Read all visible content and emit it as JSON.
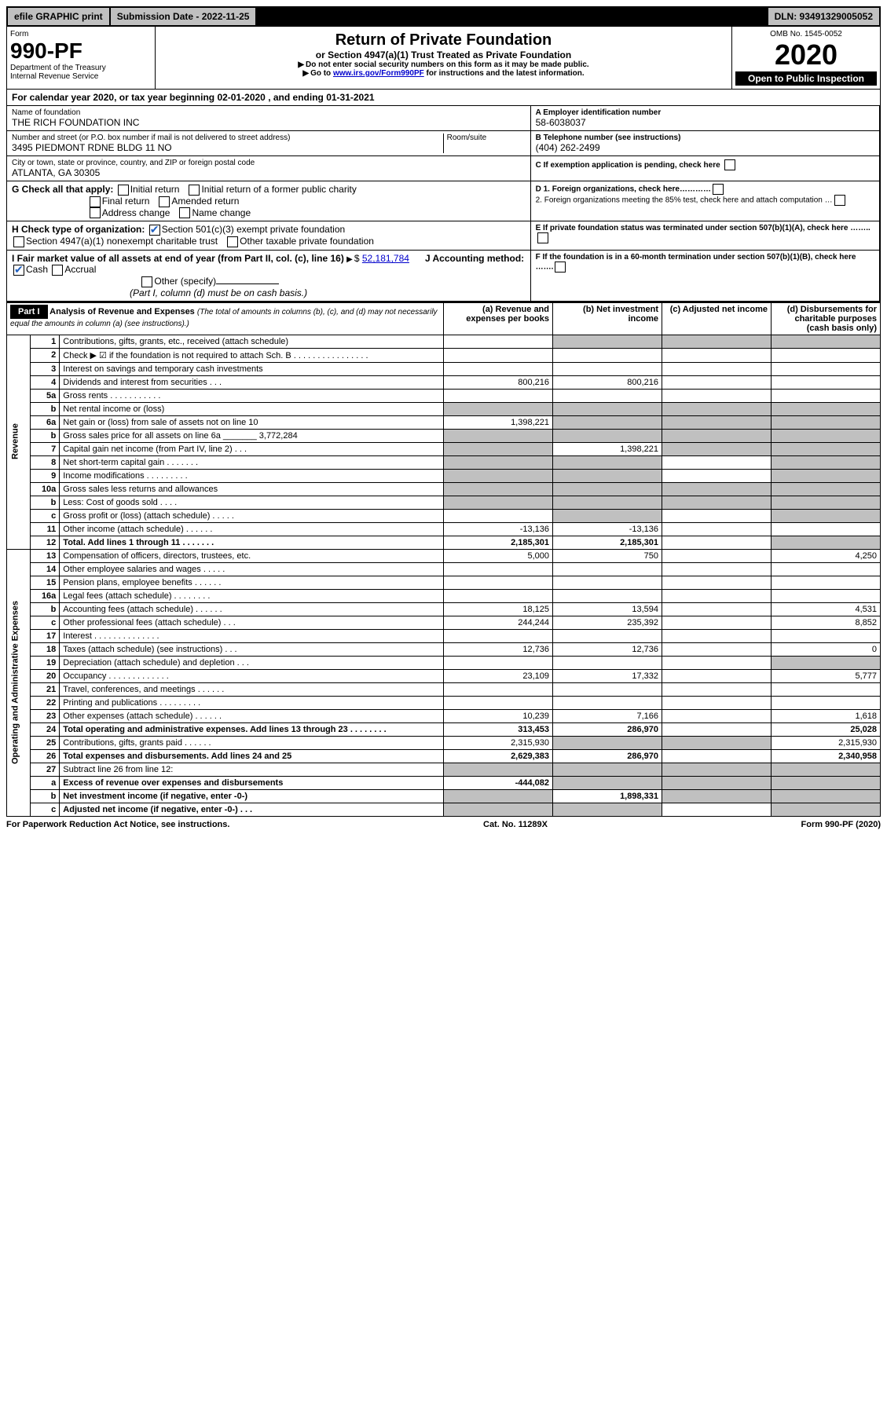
{
  "topbar": {
    "efile": "efile GRAPHIC print",
    "submission_label": "Submission Date - 2022-11-25",
    "dln_label": "DLN: 93491329005052"
  },
  "header": {
    "form_word": "Form",
    "form_number": "990-PF",
    "dept1": "Department of the Treasury",
    "dept2": "Internal Revenue Service",
    "omb": "OMB No. 1545-0052",
    "title": "Return of Private Foundation",
    "subtitle": "or Section 4947(a)(1) Trust Treated as Private Foundation",
    "note1": "Do not enter social security numbers on this form as it may be made public.",
    "note2_pre": "Go to ",
    "note2_link": "www.irs.gov/Form990PF",
    "note2_post": " for instructions and the latest information.",
    "year": "2020",
    "open": "Open to Public Inspection"
  },
  "calendar": {
    "pre": "For calendar year 2020, or tax year beginning ",
    "begin": "02-01-2020",
    "mid": " , and ending ",
    "end": "01-31-2021"
  },
  "info": {
    "name_label": "Name of foundation",
    "name": "THE RICH FOUNDATION INC",
    "addr_label": "Number and street (or P.O. box number if mail is not delivered to street address)",
    "addr": "3495 PIEDMONT RDNE BLDG 11 NO",
    "room_label": "Room/suite",
    "city_label": "City or town, state or province, country, and ZIP or foreign postal code",
    "city": "ATLANTA, GA  30305",
    "a_label": "A Employer identification number",
    "a_val": "58-6038037",
    "b_label": "B Telephone number (see instructions)",
    "b_val": "(404) 262-2499",
    "c_label": "C If exemption application is pending, check here",
    "g_label": "G Check all that apply:",
    "g_opts": [
      "Initial return",
      "Final return",
      "Address change",
      "Initial return of a former public charity",
      "Amended return",
      "Name change"
    ],
    "h_label": "H Check type of organization:",
    "h1": "Section 501(c)(3) exempt private foundation",
    "h2": "Section 4947(a)(1) nonexempt charitable trust",
    "h3": "Other taxable private foundation",
    "d1": "D 1. Foreign organizations, check here…………",
    "d2": "2. Foreign organizations meeting the 85% test, check here and attach computation …",
    "e_label": "E  If private foundation status was terminated under section 507(b)(1)(A), check here ……..",
    "i_label": "I Fair market value of all assets at end of year (from Part II, col. (c), line 16)",
    "i_val": "52,181,784",
    "j_label": "J Accounting method:",
    "j_cash": "Cash",
    "j_accrual": "Accrual",
    "j_other": "Other (specify)",
    "j_note": "(Part I, column (d) must be on cash basis.)",
    "f_label": "F  If the foundation is in a 60-month termination under section 507(b)(1)(B), check here ……."
  },
  "part1": {
    "label": "Part I",
    "title": "Analysis of Revenue and Expenses",
    "title_note": "(The total of amounts in columns (b), (c), and (d) may not necessarily equal the amounts in column (a) (see instructions).)",
    "col_a": "(a)      Revenue and expenses per books",
    "col_b": "(b)   Net investment income",
    "col_c": "(c)   Adjusted net income",
    "col_d": "(d)   Disbursements for charitable purposes (cash basis only)",
    "sidebar_rev": "Revenue",
    "sidebar_exp": "Operating and Administrative Expenses"
  },
  "rows": [
    {
      "n": "1",
      "label": "Contributions, gifts, grants, etc., received (attach schedule)",
      "a": "",
      "b": "",
      "c": "",
      "d": "",
      "grey_bcd": true
    },
    {
      "n": "2",
      "label": "Check ▶ ☑ if the foundation is not required to attach Sch. B   .  .  .  .  .  .  .  .  .  .  .  .  .  .  .  ."
    },
    {
      "n": "3",
      "label": "Interest on savings and temporary cash investments"
    },
    {
      "n": "4",
      "label": "Dividends and interest from securities   .   .   .",
      "a": "800,216",
      "b": "800,216"
    },
    {
      "n": "5a",
      "label": "Gross rents   .   .   .   .   .   .   .   .   .   .   ."
    },
    {
      "n": "b",
      "label": "Net rental income or (loss)  ",
      "grey_all": true
    },
    {
      "n": "6a",
      "label": "Net gain or (loss) from sale of assets not on line 10",
      "a": "1,398,221",
      "grey_bcd": true
    },
    {
      "n": "b",
      "label": "Gross sales price for all assets on line 6a _______ 3,772,284",
      "grey_all": true
    },
    {
      "n": "7",
      "label": "Capital gain net income (from Part IV, line 2)   .   .   .",
      "b": "1,398,221",
      "grey_a": true,
      "grey_cd": true
    },
    {
      "n": "8",
      "label": "Net short-term capital gain   .   .   .   .   .   .   .",
      "grey_ab": true,
      "grey_d": true
    },
    {
      "n": "9",
      "label": "Income modifications  .   .   .   .   .   .   .   .   .",
      "grey_ab": true,
      "grey_d": true
    },
    {
      "n": "10a",
      "label": "Gross sales less returns and allowances",
      "grey_all": true
    },
    {
      "n": "b",
      "label": "Less: Cost of goods sold   .   .   .   .",
      "grey_all": true
    },
    {
      "n": "c",
      "label": "Gross profit or (loss) (attach schedule)    .   .   .   .   .",
      "grey_b": true,
      "grey_d": true
    },
    {
      "n": "11",
      "label": "Other income (attach schedule)   .   .   .   .   .   .",
      "a": "-13,136",
      "b": "-13,136"
    },
    {
      "n": "12",
      "label": "Total. Add lines 1 through 11   .   .   .   .   .   .   .",
      "a": "2,185,301",
      "b": "2,185,301",
      "bold": true,
      "grey_d": true
    }
  ],
  "exp_rows": [
    {
      "n": "13",
      "label": "Compensation of officers, directors, trustees, etc.",
      "a": "5,000",
      "b": "750",
      "d": "4,250"
    },
    {
      "n": "14",
      "label": "Other employee salaries and wages   .   .   .   .   ."
    },
    {
      "n": "15",
      "label": "Pension plans, employee benefits   .   .   .   .   .   ."
    },
    {
      "n": "16a",
      "label": "Legal fees (attach schedule)  .   .   .   .   .   .   .   ."
    },
    {
      "n": "b",
      "label": "Accounting fees (attach schedule)  .   .   .   .   .   .",
      "a": "18,125",
      "b": "13,594",
      "d": "4,531"
    },
    {
      "n": "c",
      "label": "Other professional fees (attach schedule)   .   .   .",
      "a": "244,244",
      "b": "235,392",
      "d": "8,852"
    },
    {
      "n": "17",
      "label": "Interest  .   .   .   .   .   .   .   .   .   .   .   .   .   ."
    },
    {
      "n": "18",
      "label": "Taxes (attach schedule) (see instructions)   .   .   .",
      "a": "12,736",
      "b": "12,736",
      "d": "0"
    },
    {
      "n": "19",
      "label": "Depreciation (attach schedule) and depletion   .   .   .",
      "grey_d": true
    },
    {
      "n": "20",
      "label": "Occupancy  .   .   .   .   .   .   .   .   .   .   .   .   .",
      "a": "23,109",
      "b": "17,332",
      "d": "5,777"
    },
    {
      "n": "21",
      "label": "Travel, conferences, and meetings  .   .   .   .   .   ."
    },
    {
      "n": "22",
      "label": "Printing and publications  .   .   .   .   .   .   .   .   ."
    },
    {
      "n": "23",
      "label": "Other expenses (attach schedule)  .   .   .   .   .   .",
      "a": "10,239",
      "b": "7,166",
      "d": "1,618"
    },
    {
      "n": "24",
      "label": "Total operating and administrative expenses. Add lines 13 through 23   .   .   .   .   .   .   .   .",
      "a": "313,453",
      "b": "286,970",
      "d": "25,028",
      "bold": true
    },
    {
      "n": "25",
      "label": "Contributions, gifts, grants paid   .   .   .   .   .   .",
      "a": "2,315,930",
      "d": "2,315,930",
      "grey_bc": true
    },
    {
      "n": "26",
      "label": "Total expenses and disbursements. Add lines 24 and 25",
      "a": "2,629,383",
      "b": "286,970",
      "d": "2,340,958",
      "bold": true
    },
    {
      "n": "27",
      "label": "Subtract line 26 from line 12:",
      "grey_all": true
    },
    {
      "n": "a",
      "label": "Excess of revenue over expenses and disbursements",
      "a": "-444,082",
      "bold": true,
      "grey_bcd": true
    },
    {
      "n": "b",
      "label": "Net investment income (if negative, enter -0-)",
      "b": "1,898,331",
      "bold": true,
      "grey_a": true,
      "grey_cd": true
    },
    {
      "n": "c",
      "label": "Adjusted net income (if negative, enter -0-)   .   .   .",
      "bold": true,
      "grey_ab": true,
      "grey_d": true
    }
  ],
  "footer": {
    "left": "For Paperwork Reduction Act Notice, see instructions.",
    "mid": "Cat. No. 11289X",
    "right": "Form 990-PF (2020)"
  }
}
